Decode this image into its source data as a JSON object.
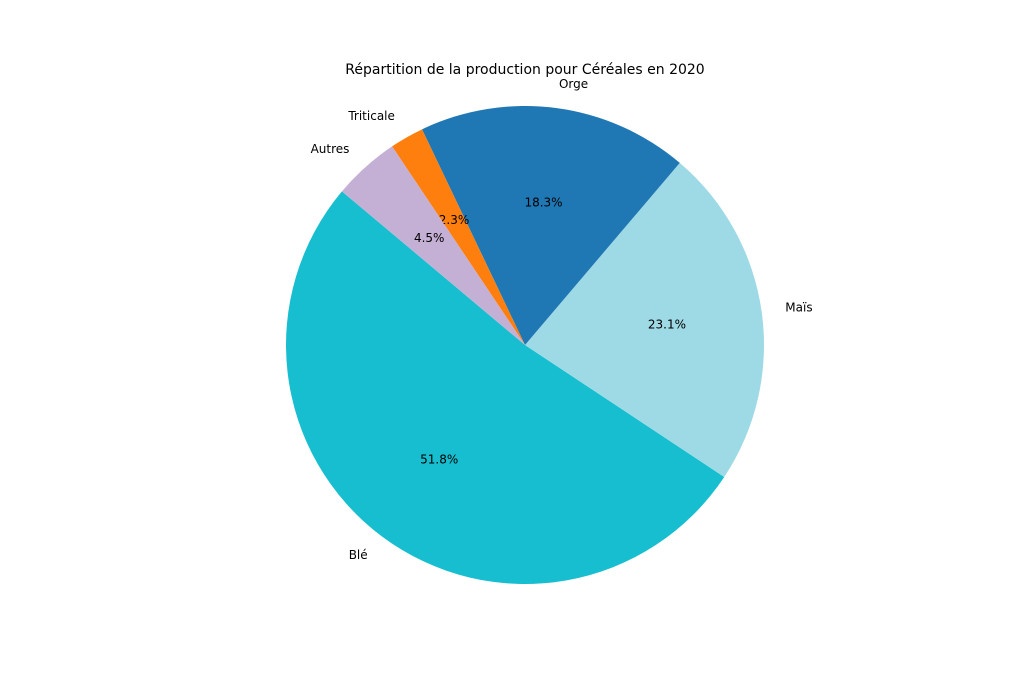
{
  "chart_data": {
    "type": "pie",
    "title": "Répartition de la production pour Céréales en 2020",
    "categories": [
      "Blé",
      "Maïs",
      "Orge",
      "Triticale",
      "Autres"
    ],
    "values": [
      51.8,
      23.1,
      18.3,
      2.3,
      4.5
    ],
    "value_labels": [
      "51.8%",
      "23.1%",
      "18.3%",
      "2.3%",
      "4.5%"
    ],
    "colors": [
      "#17becf",
      "#9edae5",
      "#1f77b4",
      "#ff7f0e",
      "#c5b0d5"
    ]
  }
}
